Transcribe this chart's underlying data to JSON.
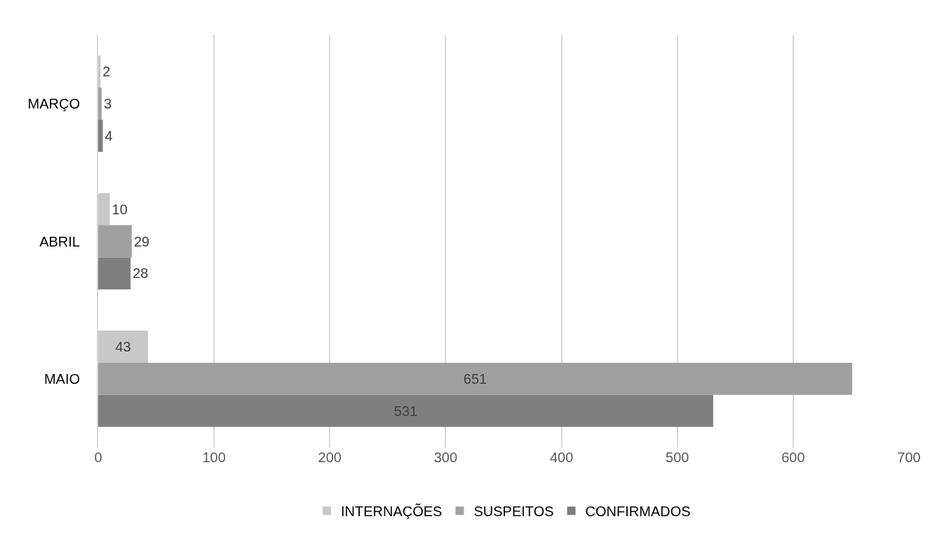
{
  "chart_data": {
    "type": "bar",
    "orientation": "horizontal",
    "categories": [
      "MARÇO",
      "ABRIL",
      "MAIO"
    ],
    "series": [
      {
        "name": "INTERNAÇÕES",
        "color": "#c8c8c8",
        "values": [
          2,
          10,
          43
        ]
      },
      {
        "name": "SUSPEITOS",
        "color": "#a0a0a0",
        "values": [
          3,
          29,
          651
        ]
      },
      {
        "name": "CONFIRMADOS",
        "color": "#7f7f7f",
        "values": [
          4,
          28,
          531
        ]
      }
    ],
    "xlim": [
      0,
      700
    ],
    "xticks": [
      0,
      100,
      200,
      300,
      400,
      500,
      600,
      700
    ],
    "grid": "x",
    "legend": "bottom",
    "data_labels": true
  }
}
